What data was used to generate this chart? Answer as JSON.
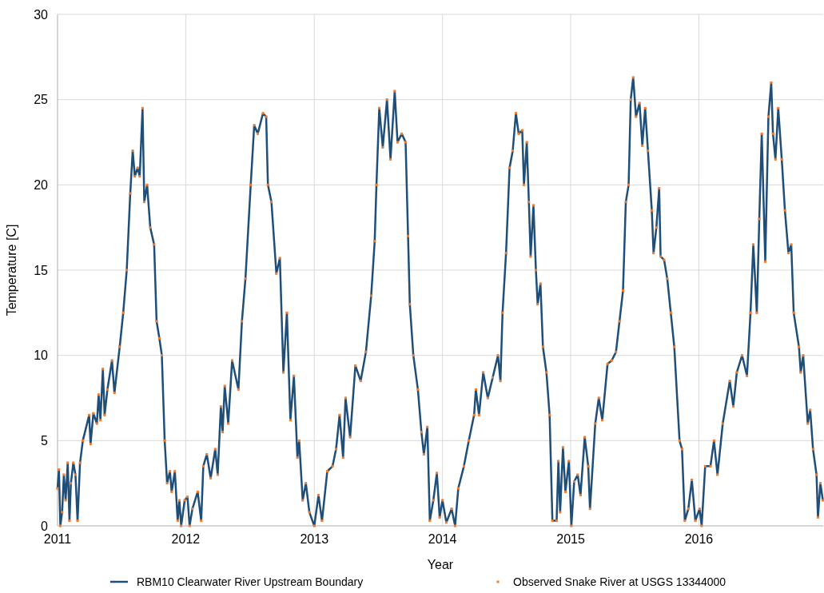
{
  "chart_data": {
    "type": "line",
    "xlabel": "Year",
    "ylabel": "Temperature [C]",
    "xlim": [
      "2011",
      "2016-12-20"
    ],
    "xticks": [
      "2011",
      "2012",
      "2013",
      "2014",
      "2015",
      "2016"
    ],
    "ylim": [
      0,
      30
    ],
    "yticks": [
      0,
      5,
      10,
      15,
      20,
      25,
      30
    ],
    "grid": true,
    "legend": "bottom",
    "x": [
      "2011-01-01",
      "2011-01-05",
      "2011-01-09",
      "2011-01-14",
      "2011-01-19",
      "2011-01-24",
      "2011-01-30",
      "2011-02-04",
      "2011-02-08",
      "2011-02-15",
      "2011-02-21",
      "2011-02-27",
      "2011-03-06",
      "2011-03-14",
      "2011-04-01",
      "2011-04-05",
      "2011-04-13",
      "2011-04-23",
      "2011-04-28",
      "2011-05-03",
      "2011-05-10",
      "2011-05-15",
      "2011-05-23",
      "2011-06-05",
      "2011-06-12",
      "2011-06-27",
      "2011-07-07",
      "2011-07-17",
      "2011-07-27",
      "2011-08-03",
      "2011-08-09",
      "2011-08-17",
      "2011-08-23",
      "2011-08-31",
      "2011-09-05",
      "2011-09-13",
      "2011-09-22",
      "2011-10-03",
      "2011-10-10",
      "2011-10-18",
      "2011-10-25",
      "2011-11-02",
      "2011-11-09",
      "2011-11-17",
      "2011-11-22",
      "2011-12-01",
      "2011-12-09",
      "2011-12-14",
      "2011-12-19",
      "2011-12-29",
      "2012-01-06",
      "2012-01-12",
      "2012-01-20",
      "2012-02-04",
      "2012-02-14",
      "2012-02-20",
      "2012-03-01",
      "2012-03-12",
      "2012-03-25",
      "2012-04-01",
      "2012-04-10",
      "2012-04-15",
      "2012-04-21",
      "2012-05-01",
      "2012-05-12",
      "2012-05-30",
      "2012-06-09",
      "2012-06-19",
      "2012-07-04",
      "2012-07-14",
      "2012-07-24",
      "2012-08-08",
      "2012-08-17",
      "2012-08-22",
      "2012-09-01",
      "2012-09-15",
      "2012-09-25",
      "2012-10-05",
      "2012-10-15",
      "2012-10-25",
      "2012-11-04",
      "2012-11-14",
      "2012-11-19",
      "2012-11-29",
      "2012-12-08",
      "2012-12-18",
      "2013-01-01",
      "2013-01-13",
      "2013-01-23",
      "2013-02-07",
      "2013-02-22",
      "2013-03-04",
      "2013-03-14",
      "2013-03-24",
      "2013-03-31",
      "2013-04-13",
      "2013-04-28",
      "2013-05-13",
      "2013-05-28",
      "2013-06-12",
      "2013-06-22",
      "2013-06-27",
      "2013-07-05",
      "2013-07-15",
      "2013-07-27",
      "2013-08-06",
      "2013-08-18",
      "2013-08-26",
      "2013-09-07",
      "2013-09-18",
      "2013-09-25",
      "2013-09-30",
      "2013-10-10",
      "2013-10-23",
      "2013-11-02",
      "2013-11-09",
      "2013-11-19",
      "2013-11-26",
      "2013-12-06",
      "2013-12-16",
      "2013-12-24",
      "2014-01-01",
      "2014-01-12",
      "2014-01-27",
      "2014-02-06",
      "2014-02-15",
      "2014-03-03",
      "2014-03-17",
      "2014-04-01",
      "2014-04-06",
      "2014-04-15",
      "2014-04-27",
      "2014-05-10",
      "2014-05-24",
      "2014-06-08",
      "2014-06-15",
      "2014-06-21",
      "2014-07-01",
      "2014-07-11",
      "2014-07-20",
      "2014-07-29",
      "2014-08-06",
      "2014-08-16",
      "2014-08-21",
      "2014-08-29",
      "2014-09-04",
      "2014-09-09",
      "2014-09-17",
      "2014-09-24",
      "2014-09-29",
      "2014-10-07",
      "2014-10-14",
      "2014-10-24",
      "2014-11-02",
      "2014-11-10",
      "2014-11-22",
      "2014-11-27",
      "2014-12-02",
      "2014-12-10",
      "2014-12-17",
      "2014-12-27",
      "2015-01-03",
      "2015-01-11",
      "2015-01-21",
      "2015-01-29",
      "2015-02-10",
      "2015-02-20",
      "2015-02-25",
      "2015-03-12",
      "2015-03-22",
      "2015-04-01",
      "2015-04-16",
      "2015-04-28",
      "2015-05-10",
      "2015-05-20",
      "2015-05-30",
      "2015-06-07",
      "2015-06-15",
      "2015-06-21",
      "2015-06-28",
      "2015-07-06",
      "2015-07-16",
      "2015-07-24",
      "2015-08-01",
      "2015-08-09",
      "2015-08-20",
      "2015-08-25",
      "2015-09-02",
      "2015-09-10",
      "2015-09-14",
      "2015-09-24",
      "2015-10-03",
      "2015-10-13",
      "2015-10-23",
      "2015-11-07",
      "2015-11-14",
      "2015-11-22",
      "2015-12-02",
      "2015-12-12",
      "2015-12-22",
      "2016-01-03",
      "2016-01-09",
      "2016-01-19",
      "2016-02-03",
      "2016-02-13",
      "2016-02-23",
      "2016-03-09",
      "2016-03-29",
      "2016-04-08",
      "2016-04-18",
      "2016-05-03",
      "2016-05-17",
      "2016-05-27",
      "2016-06-04",
      "2016-06-14",
      "2016-06-21",
      "2016-06-28",
      "2016-07-08",
      "2016-07-17",
      "2016-07-25",
      "2016-07-30",
      "2016-08-06",
      "2016-08-14",
      "2016-08-24",
      "2016-09-02",
      "2016-09-12",
      "2016-09-20",
      "2016-09-27",
      "2016-10-12",
      "2016-10-17",
      "2016-10-24",
      "2016-11-06",
      "2016-11-13",
      "2016-11-21",
      "2016-12-01",
      "2016-12-05",
      "2016-12-12",
      "2016-12-19"
    ],
    "series": [
      {
        "name": "RBM10 Clearwater River Upstream Boundary",
        "color": "#1f4e79",
        "marker": "none",
        "line_style": "solid",
        "values": [
          2.2,
          3.3,
          0,
          0.8,
          3,
          1.5,
          3.7,
          0.3,
          2.5,
          3.7,
          3,
          0.3,
          3.7,
          5,
          6.5,
          4.8,
          6.6,
          6,
          7.7,
          6.2,
          9.2,
          6.5,
          8,
          9.7,
          7.8,
          10.5,
          12.5,
          15,
          19.5,
          22,
          20.5,
          21,
          20.5,
          24.5,
          19,
          20,
          17.5,
          16.5,
          12,
          11,
          10,
          5,
          2.5,
          3.2,
          2,
          3.2,
          0.3,
          1.5,
          0,
          1.5,
          1.7,
          0,
          1,
          2,
          0.3,
          3.5,
          4.2,
          2.8,
          4.5,
          3,
          7,
          5.5,
          8.2,
          6,
          9.7,
          8,
          12,
          14.5,
          20,
          23.5,
          23,
          24.2,
          24,
          20,
          19,
          14.8,
          15.7,
          9,
          12.5,
          6.2,
          8.8,
          4,
          5,
          1.5,
          2.5,
          0.8,
          0,
          1.8,
          0.3,
          3.2,
          3.5,
          4.5,
          6.5,
          4,
          7.5,
          5.2,
          9.4,
          8.5,
          10.2,
          13.5,
          16.7,
          20,
          24.5,
          22.2,
          25,
          21.5,
          25.5,
          22.5,
          23,
          22.5,
          17,
          13,
          10,
          8,
          5.5,
          4.2,
          5.8,
          0.3,
          1.5,
          3.1,
          0.5,
          1.5,
          0.2,
          1,
          0,
          2.2,
          3.5,
          5,
          6.5,
          8,
          6.5,
          9,
          7.5,
          8.7,
          10,
          8.5,
          12.5,
          16,
          21,
          22,
          24.2,
          23,
          23.2,
          20,
          22.5,
          19,
          15.8,
          18.8,
          15,
          13,
          14.2,
          10.5,
          9,
          6.5,
          0.3,
          0.3,
          3.8,
          0.8,
          4.6,
          2,
          3.8,
          0,
          2.6,
          3,
          1.8,
          5.2,
          3.5,
          1,
          6,
          7.5,
          6.2,
          9.5,
          9.7,
          10.2,
          12,
          13.8,
          19,
          20,
          25,
          26.3,
          24,
          24.8,
          22.3,
          24.5,
          22,
          18.5,
          16,
          17.5,
          19.8,
          15.8,
          15.6,
          14.5,
          12.5,
          10.5,
          5,
          4.5,
          0.3,
          1,
          2.7,
          0.3,
          1,
          0,
          3.5,
          3.5,
          5,
          3,
          6,
          8.5,
          7,
          9,
          10,
          8.8,
          12.5,
          16.5,
          12.5,
          18,
          23,
          15.5,
          24,
          26,
          23,
          21.5,
          24.5,
          21.5,
          18.5,
          16,
          16.5,
          12.5,
          10.5,
          9,
          10,
          6,
          6.8,
          4.5,
          3,
          0.5,
          2.5,
          1.5
        ]
      },
      {
        "name": "Observed Snake River at USGS 13344000",
        "type": "scatter",
        "color": "#ed7d31",
        "marker": "square",
        "values": [
          2.2,
          3.3,
          0,
          0.8,
          3,
          1.5,
          3.7,
          0.3,
          2.5,
          3.7,
          3,
          0.3,
          3.7,
          5,
          6.5,
          4.8,
          6.6,
          6,
          7.7,
          6.2,
          9.2,
          6.5,
          8,
          9.7,
          7.8,
          10.5,
          12.5,
          15,
          19.5,
          22,
          20.5,
          21,
          20.5,
          24.5,
          19,
          20,
          17.5,
          16.5,
          12,
          11,
          10,
          5,
          2.5,
          3.2,
          2,
          3.2,
          0.3,
          1.5,
          0,
          1.5,
          1.7,
          0,
          1,
          2,
          0.3,
          3.5,
          4.2,
          2.8,
          4.5,
          3,
          7,
          5.5,
          8.2,
          6,
          9.7,
          8,
          12,
          14.5,
          20,
          23.5,
          23,
          24.2,
          24,
          20,
          19,
          14.8,
          15.7,
          9,
          12.5,
          6.2,
          8.8,
          4,
          5,
          1.5,
          2.5,
          0.8,
          0,
          1.8,
          0.3,
          3.2,
          3.5,
          4.5,
          6.5,
          4,
          7.5,
          5.2,
          9.4,
          8.5,
          10.2,
          13.5,
          16.7,
          20,
          24.5,
          22.2,
          25,
          21.5,
          25.5,
          22.5,
          23,
          22.5,
          17,
          13,
          10,
          8,
          5.5,
          4.2,
          5.8,
          0.3,
          1.5,
          3.1,
          0.5,
          1.5,
          0.2,
          1,
          0,
          2.2,
          3.5,
          5,
          6.5,
          8,
          6.5,
          9,
          7.5,
          8.7,
          10,
          8.5,
          12.5,
          16,
          21,
          22,
          24.2,
          23,
          23.2,
          20,
          22.5,
          19,
          15.8,
          18.8,
          15,
          13,
          14.2,
          10.5,
          9,
          6.5,
          0.3,
          0.3,
          3.8,
          0.8,
          4.6,
          2,
          3.8,
          0,
          2.6,
          3,
          1.8,
          5.2,
          3.5,
          1,
          6,
          7.5,
          6.2,
          9.5,
          9.7,
          10.2,
          12,
          13.8,
          19,
          20,
          25,
          26.3,
          24,
          24.8,
          22.3,
          24.5,
          22,
          18.5,
          16,
          17.5,
          19.8,
          15.8,
          15.6,
          14.5,
          12.5,
          10.5,
          5,
          4.5,
          0.3,
          1,
          2.7,
          0.3,
          1,
          0,
          3.5,
          3.5,
          5,
          3,
          6,
          8.5,
          7,
          9,
          10,
          8.8,
          12.5,
          16.5,
          12.5,
          18,
          23,
          15.5,
          24,
          26,
          23,
          21.5,
          24.5,
          21.5,
          18.5,
          16,
          16.5,
          12.5,
          10.5,
          9,
          10,
          6,
          6.8,
          4.5,
          3,
          0.5,
          2.5,
          1.5
        ]
      }
    ]
  }
}
